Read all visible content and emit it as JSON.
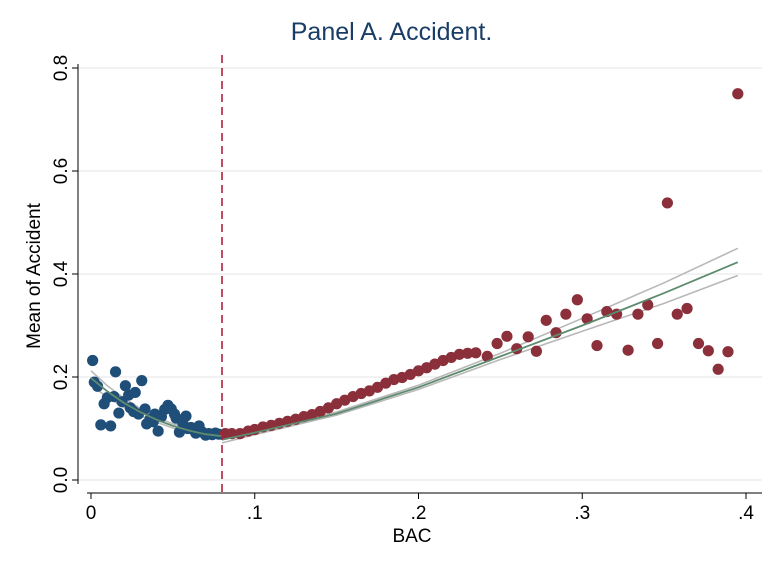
{
  "chart_data": {
    "type": "scatter",
    "title": "Panel A. Accident.",
    "xlabel": "BAC",
    "ylabel": "Mean of Accident",
    "xlim": [
      0,
      0.4
    ],
    "ylim": [
      0,
      0.8
    ],
    "x_ticks": [
      {
        "value": 0,
        "label": "0"
      },
      {
        "value": 0.1,
        "label": ".1"
      },
      {
        "value": 0.2,
        "label": ".2"
      },
      {
        "value": 0.3,
        "label": ".3"
      },
      {
        "value": 0.4,
        "label": ".4"
      }
    ],
    "y_ticks": [
      {
        "value": 0,
        "label": "0.0"
      },
      {
        "value": 0.2,
        "label": "0.2"
      },
      {
        "value": 0.4,
        "label": "0.4"
      },
      {
        "value": 0.6,
        "label": "0.6"
      },
      {
        "value": 0.8,
        "label": "0.8"
      }
    ],
    "grid": "horizontal",
    "cutoff": 0.08,
    "colors": {
      "below": "#1f4e79",
      "above": "#8b2f3a",
      "cutoff": "#b0213a",
      "fit": "#5e8b6f",
      "ci": "#b8b8b8",
      "title": "#1a3d66"
    },
    "series": [
      {
        "side": "below",
        "points": [
          [
            0.001,
            0.232
          ],
          [
            0.002,
            0.19
          ],
          [
            0.004,
            0.182
          ],
          [
            0.006,
            0.107
          ],
          [
            0.008,
            0.148
          ],
          [
            0.01,
            0.16
          ],
          [
            0.012,
            0.105
          ],
          [
            0.014,
            0.162
          ],
          [
            0.015,
            0.21
          ],
          [
            0.017,
            0.13
          ],
          [
            0.019,
            0.152
          ],
          [
            0.021,
            0.183
          ],
          [
            0.023,
            0.165
          ],
          [
            0.024,
            0.14
          ],
          [
            0.026,
            0.133
          ],
          [
            0.027,
            0.17
          ],
          [
            0.029,
            0.128
          ],
          [
            0.031,
            0.193
          ],
          [
            0.033,
            0.138
          ],
          [
            0.034,
            0.109
          ],
          [
            0.036,
            0.118
          ],
          [
            0.038,
            0.113
          ],
          [
            0.039,
            0.128
          ],
          [
            0.041,
            0.095
          ],
          [
            0.043,
            0.123
          ],
          [
            0.045,
            0.137
          ],
          [
            0.047,
            0.145
          ],
          [
            0.049,
            0.138
          ],
          [
            0.051,
            0.128
          ],
          [
            0.052,
            0.12
          ],
          [
            0.054,
            0.093
          ],
          [
            0.056,
            0.111
          ],
          [
            0.058,
            0.124
          ],
          [
            0.059,
            0.1
          ],
          [
            0.061,
            0.102
          ],
          [
            0.063,
            0.096
          ],
          [
            0.064,
            0.091
          ],
          [
            0.066,
            0.105
          ],
          [
            0.068,
            0.093
          ],
          [
            0.07,
            0.087
          ],
          [
            0.072,
            0.09
          ],
          [
            0.074,
            0.088
          ],
          [
            0.076,
            0.091
          ],
          [
            0.078,
            0.089
          ]
        ],
        "fit": [
          [
            0,
            0.198
          ],
          [
            0.01,
            0.172
          ],
          [
            0.02,
            0.15
          ],
          [
            0.03,
            0.132
          ],
          [
            0.04,
            0.117
          ],
          [
            0.05,
            0.105
          ],
          [
            0.06,
            0.096
          ],
          [
            0.07,
            0.089
          ],
          [
            0.08,
            0.085
          ]
        ],
        "ci_upper": [
          [
            0,
            0.212
          ],
          [
            0.01,
            0.183
          ],
          [
            0.02,
            0.159
          ],
          [
            0.03,
            0.139
          ],
          [
            0.04,
            0.122
          ],
          [
            0.05,
            0.109
          ],
          [
            0.06,
            0.1
          ],
          [
            0.07,
            0.093
          ],
          [
            0.08,
            0.091
          ]
        ],
        "ci_lower": [
          [
            0,
            0.184
          ],
          [
            0.01,
            0.161
          ],
          [
            0.02,
            0.141
          ],
          [
            0.03,
            0.125
          ],
          [
            0.04,
            0.112
          ],
          [
            0.05,
            0.101
          ],
          [
            0.06,
            0.092
          ],
          [
            0.07,
            0.085
          ],
          [
            0.08,
            0.079
          ]
        ]
      },
      {
        "side": "above",
        "points": [
          [
            0.082,
            0.09
          ],
          [
            0.086,
            0.09
          ],
          [
            0.091,
            0.09
          ],
          [
            0.096,
            0.095
          ],
          [
            0.1,
            0.098
          ],
          [
            0.105,
            0.103
          ],
          [
            0.11,
            0.106
          ],
          [
            0.115,
            0.11
          ],
          [
            0.12,
            0.114
          ],
          [
            0.125,
            0.118
          ],
          [
            0.13,
            0.123
          ],
          [
            0.135,
            0.127
          ],
          [
            0.14,
            0.133
          ],
          [
            0.145,
            0.14
          ],
          [
            0.15,
            0.148
          ],
          [
            0.155,
            0.155
          ],
          [
            0.16,
            0.162
          ],
          [
            0.165,
            0.168
          ],
          [
            0.17,
            0.173
          ],
          [
            0.175,
            0.18
          ],
          [
            0.18,
            0.188
          ],
          [
            0.185,
            0.195
          ],
          [
            0.19,
            0.199
          ],
          [
            0.195,
            0.205
          ],
          [
            0.2,
            0.212
          ],
          [
            0.205,
            0.218
          ],
          [
            0.21,
            0.225
          ],
          [
            0.215,
            0.232
          ],
          [
            0.22,
            0.238
          ],
          [
            0.225,
            0.244
          ],
          [
            0.23,
            0.246
          ],
          [
            0.235,
            0.247
          ],
          [
            0.242,
            0.24
          ],
          [
            0.248,
            0.265
          ],
          [
            0.254,
            0.279
          ],
          [
            0.26,
            0.255
          ],
          [
            0.267,
            0.278
          ],
          [
            0.272,
            0.25
          ],
          [
            0.278,
            0.31
          ],
          [
            0.284,
            0.286
          ],
          [
            0.29,
            0.322
          ],
          [
            0.297,
            0.35
          ],
          [
            0.303,
            0.313
          ],
          [
            0.309,
            0.261
          ],
          [
            0.315,
            0.327
          ],
          [
            0.321,
            0.322
          ],
          [
            0.328,
            0.252
          ],
          [
            0.334,
            0.322
          ],
          [
            0.34,
            0.34
          ],
          [
            0.346,
            0.265
          ],
          [
            0.352,
            0.538
          ],
          [
            0.358,
            0.322
          ],
          [
            0.364,
            0.333
          ],
          [
            0.371,
            0.265
          ],
          [
            0.377,
            0.251
          ],
          [
            0.383,
            0.215
          ],
          [
            0.389,
            0.249
          ],
          [
            0.395,
            0.75
          ]
        ],
        "fit": [
          [
            0.08,
            0.078
          ],
          [
            0.1,
            0.092
          ],
          [
            0.15,
            0.129
          ],
          [
            0.2,
            0.18
          ],
          [
            0.25,
            0.24
          ],
          [
            0.3,
            0.3
          ],
          [
            0.35,
            0.363
          ],
          [
            0.395,
            0.423
          ]
        ],
        "ci_upper": [
          [
            0.08,
            0.084
          ],
          [
            0.1,
            0.096
          ],
          [
            0.15,
            0.132
          ],
          [
            0.2,
            0.184
          ],
          [
            0.25,
            0.246
          ],
          [
            0.3,
            0.314
          ],
          [
            0.35,
            0.383
          ],
          [
            0.395,
            0.45
          ]
        ],
        "ci_lower": [
          [
            0.08,
            0.072
          ],
          [
            0.1,
            0.088
          ],
          [
            0.15,
            0.126
          ],
          [
            0.2,
            0.176
          ],
          [
            0.25,
            0.234
          ],
          [
            0.3,
            0.289
          ],
          [
            0.35,
            0.343
          ],
          [
            0.395,
            0.397
          ]
        ]
      }
    ]
  }
}
